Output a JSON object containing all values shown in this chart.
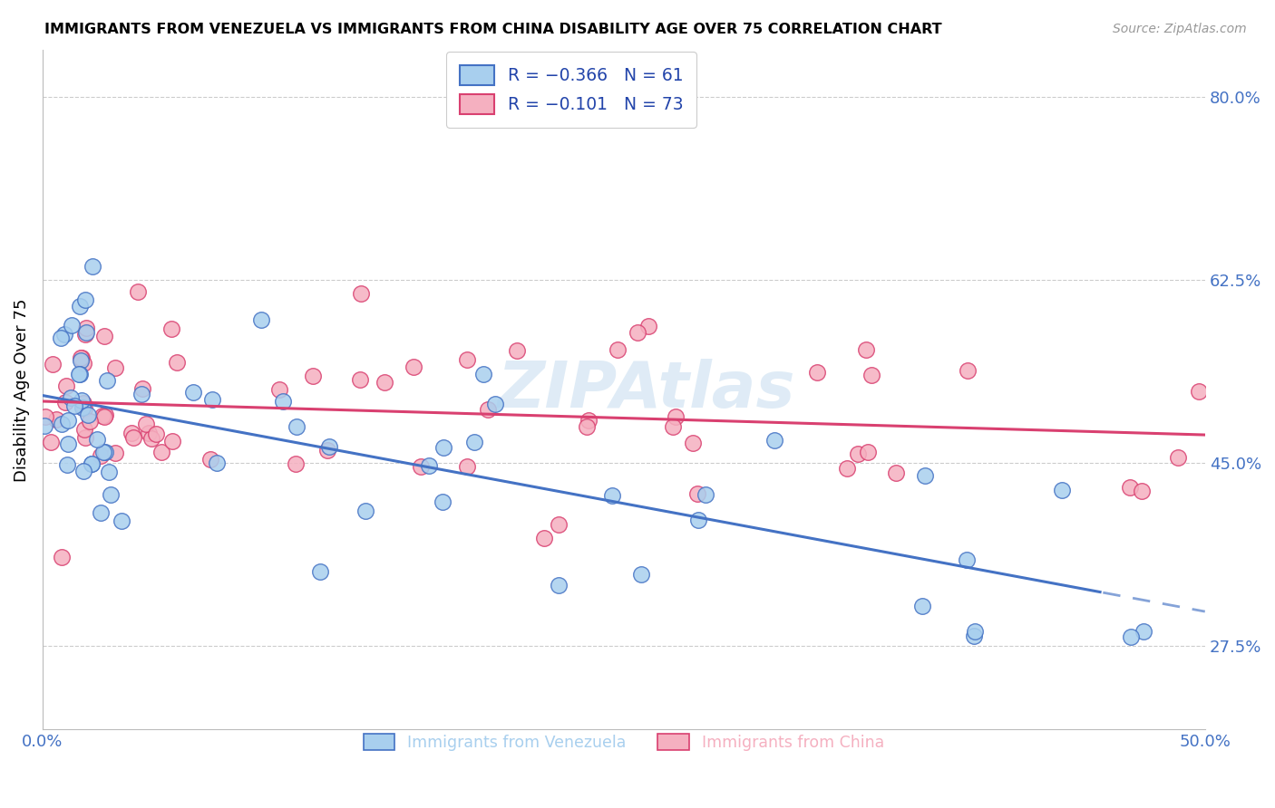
{
  "title": "IMMIGRANTS FROM VENEZUELA VS IMMIGRANTS FROM CHINA DISABILITY AGE OVER 75 CORRELATION CHART",
  "source": "Source: ZipAtlas.com",
  "ylabel": "Disability Age Over 75",
  "xlim": [
    0.0,
    0.5
  ],
  "ylim": [
    0.195,
    0.845
  ],
  "yticks": [
    0.275,
    0.45,
    0.625,
    0.8
  ],
  "ytick_labels": [
    "27.5%",
    "45.0%",
    "62.5%",
    "80.0%"
  ],
  "xtick_positions": [
    0.0,
    0.5
  ],
  "xtick_labels": [
    "0.0%",
    "50.0%"
  ],
  "legend_r1": "R = −0.366   N = 61",
  "legend_r2": "R = −0.101   N = 73",
  "color_venezuela": "#A8CFEE",
  "color_china": "#F5B0C0",
  "color_trend_venezuela": "#4472C4",
  "color_trend_china": "#D94070",
  "color_axis_text": "#4472C4",
  "color_grid": "#CCCCCC",
  "watermark_text": "ZIPAtlas",
  "solid_cutoff_ven": 0.455
}
